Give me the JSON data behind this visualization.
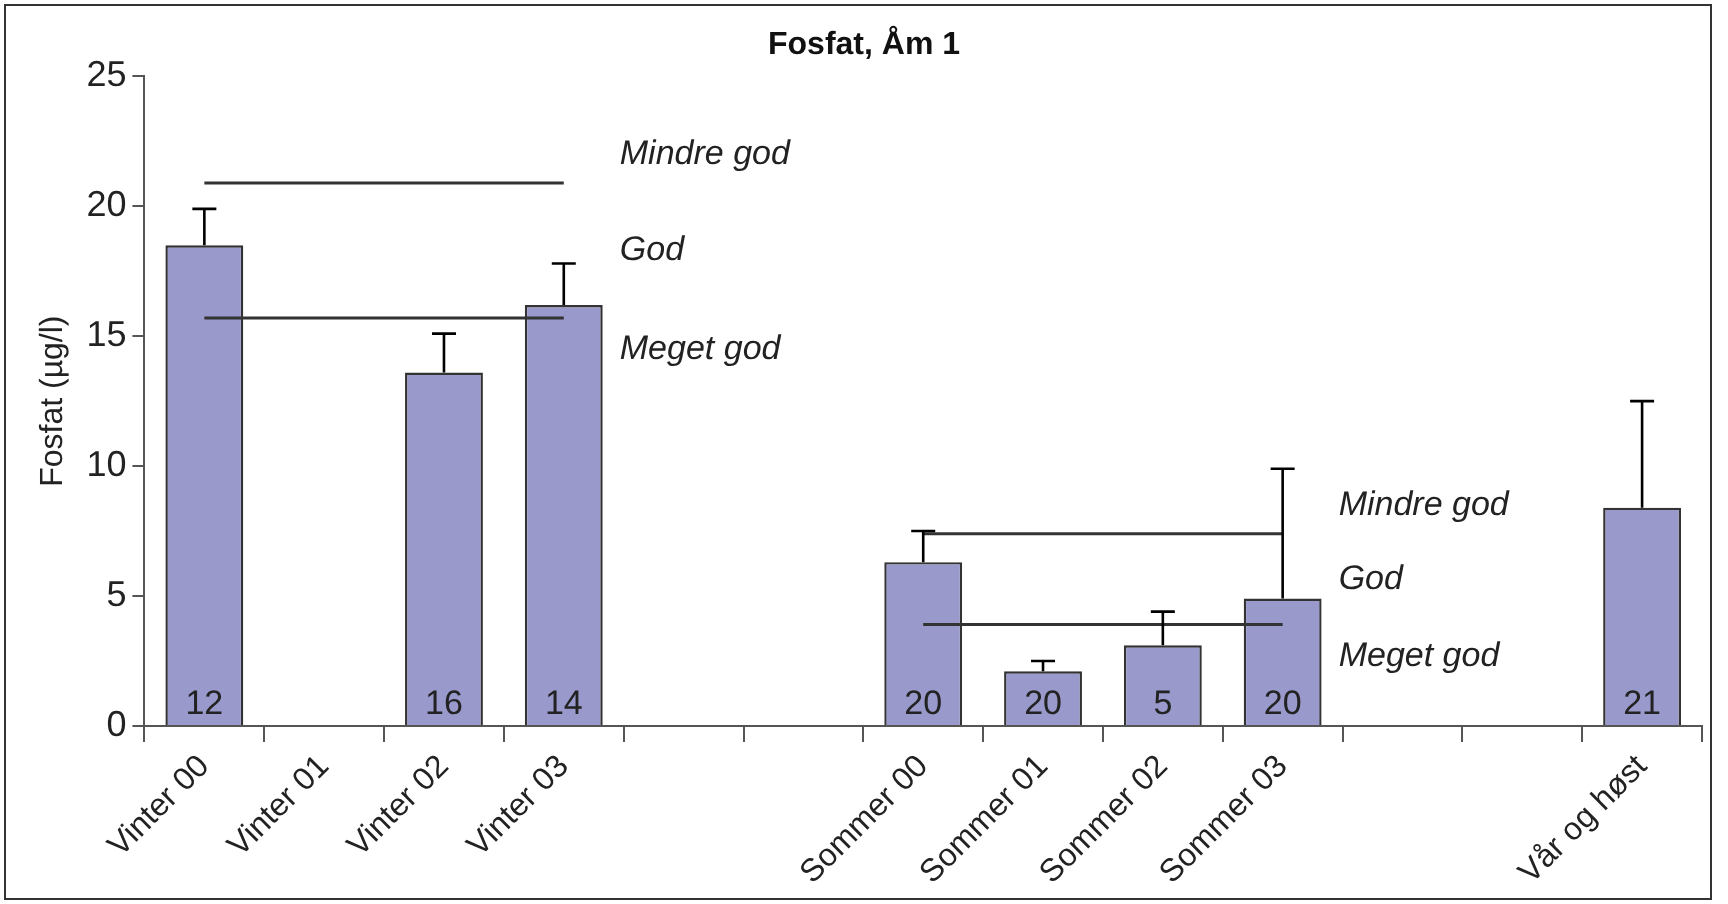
{
  "chart_data": {
    "type": "bar",
    "title": "Fosfat, Åm 1",
    "ylabel": "Fosfat (µg/l)",
    "categories": [
      "Vinter 00",
      "Vinter 01",
      "Vinter 02",
      "Vinter 03",
      null,
      null,
      "Sommer 00",
      "Sommer 01",
      "Sommer 02",
      "Sommer 03",
      null,
      null,
      "Vår og høst"
    ],
    "ylim": [
      0,
      25
    ],
    "yticks": [
      0,
      5,
      10,
      15,
      20,
      25
    ],
    "grid": false,
    "legend": false,
    "marker": "none",
    "series": [
      {
        "color": "#9999cc",
        "values": [
          18.5,
          null,
          13.6,
          16.2,
          null,
          null,
          6.3,
          2.1,
          3.1,
          4.9,
          null,
          null,
          8.4
        ],
        "errors": [
          [
            18.5,
            19.9
          ],
          null,
          [
            13.6,
            15.1
          ],
          [
            16.2,
            17.8
          ],
          null,
          null,
          [
            6.3,
            7.5
          ],
          [
            2.1,
            2.5
          ],
          [
            3.1,
            4.4
          ],
          [
            4.9,
            9.9
          ],
          null,
          null,
          [
            8.4,
            12.5
          ]
        ]
      },
      {
        "type": "line",
        "color": "#333333",
        "x": [
          "Vinter 00",
          "Vinter 03"
        ],
        "values": [
          20.9,
          20.9
        ]
      },
      {
        "type": "line",
        "color": "#333333",
        "x": [
          "Vinter 00",
          "Vinter 03"
        ],
        "values": [
          15.7,
          15.7
        ]
      },
      {
        "type": "line",
        "color": "#333333",
        "x": [
          "Sommer 00",
          "Sommer 03"
        ],
        "values": [
          7.4,
          7.4
        ]
      },
      {
        "type": "line",
        "color": "#333333",
        "x": [
          "Sommer 00",
          "Sommer 03"
        ],
        "values": [
          3.9,
          3.9
        ]
      }
    ],
    "annotations": [
      "Mindre god",
      "God",
      "Meget god",
      "Mindre god",
      "God",
      "Meget god",
      {
        "text": "12",
        "x": "Vinter 00",
        "y": 0
      },
      {
        "text": "16",
        "x": "Vinter 02",
        "y": 0
      },
      {
        "text": "14",
        "x": "Vinter 03",
        "y": 0
      },
      {
        "text": "20",
        "x": "Sommer 00",
        "y": 0
      },
      {
        "text": "20",
        "x": "Sommer 01",
        "y": 0
      },
      {
        "text": "5",
        "x": "Sommer 02",
        "y": 0
      },
      {
        "text": "20",
        "x": "Sommer 03",
        "y": 0
      },
      {
        "text": "21",
        "x": "Vår og høst",
        "y": 0
      }
    ]
  }
}
